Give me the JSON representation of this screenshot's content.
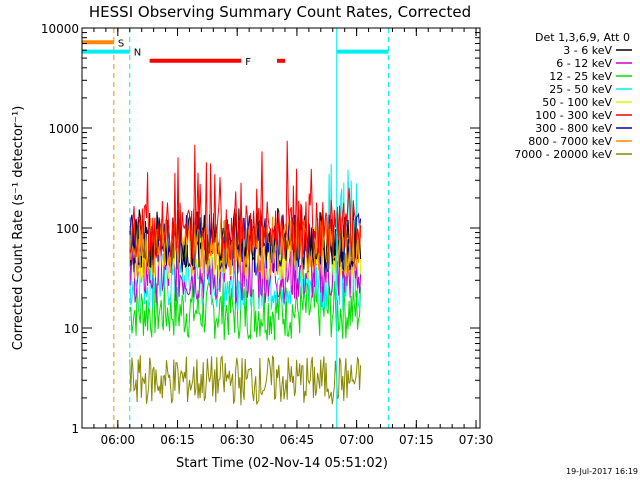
{
  "chart_data": {
    "type": "line",
    "title": "HESSI Observing Summary Count Rates, Corrected",
    "xlabel": "Start Time (02-Nov-14 05:51:02)",
    "ylabel": "Corrected Count Rate (s⁻¹ detector⁻¹)",
    "ylog": true,
    "ylim": [
      1,
      10000
    ],
    "xlim_minutes": [
      0,
      100
    ],
    "x_ticks": [
      {
        "minute": 9,
        "label": "06:00"
      },
      {
        "minute": 24,
        "label": "06:15"
      },
      {
        "minute": 39,
        "label": "06:30"
      },
      {
        "minute": 54,
        "label": "06:45"
      },
      {
        "minute": 69,
        "label": "07:00"
      },
      {
        "minute": 84,
        "label": "07:15"
      },
      {
        "minute": 99,
        "label": "07:30"
      }
    ],
    "y_ticks": [
      {
        "value": 1,
        "label": "1"
      },
      {
        "value": 10,
        "label": "10"
      },
      {
        "value": 100,
        "label": "100"
      },
      {
        "value": 1000,
        "label": "1000"
      },
      {
        "value": 10000,
        "label": "10000"
      }
    ],
    "legend_title": "Det 1,3,6,9, Att 0",
    "legend_position": "right",
    "series": [
      {
        "name": "3 - 6 keV",
        "color": "#000000",
        "level": 80
      },
      {
        "name": "6 - 12 keV",
        "color": "#cc00cc",
        "level": 35
      },
      {
        "name": "12 - 25 keV",
        "color": "#00dd00",
        "level": 15
      },
      {
        "name": "25 - 50 keV",
        "color": "#00eeee",
        "level": 30
      },
      {
        "name": "50 - 100 keV",
        "color": "#eeee00",
        "level": 60
      },
      {
        "name": "100 - 300 keV",
        "color": "#ff0000",
        "level": 95
      },
      {
        "name": "300 - 800 keV",
        "color": "#0000aa",
        "level": 70
      },
      {
        "name": "800 - 7000 keV",
        "color": "#ff8800",
        "level": 65
      },
      {
        "name": "7000 - 20000 keV",
        "color": "#888800",
        "level": 3
      }
    ],
    "data_window_minutes": [
      12,
      70
    ],
    "flag_bars": [
      {
        "label": "S",
        "color": "#ff8800",
        "x": [
          0,
          8
        ],
        "y": 7200
      },
      {
        "label": "N",
        "color": "#00eeee",
        "x": [
          0,
          12
        ],
        "y": 5800
      },
      {
        "label": "N",
        "color": "#00eeee",
        "x": [
          64,
          77
        ],
        "y": 5800
      },
      {
        "label": "F",
        "color": "#ff0000",
        "x": [
          17,
          40
        ],
        "y": 4700
      },
      {
        "label": "F",
        "color": "#ff0000",
        "x": [
          49,
          51
        ],
        "y": 4700
      }
    ],
    "vertical_lines": [
      {
        "minute": 0,
        "color": "#00eeee",
        "style": "solid"
      },
      {
        "minute": 8,
        "color": "#ff8800",
        "style": "dashed"
      },
      {
        "minute": 12,
        "color": "#00eeee",
        "style": "dashed"
      },
      {
        "minute": 64,
        "color": "#00eeee",
        "style": "solid"
      },
      {
        "minute": 77,
        "color": "#00eeee",
        "style": "dashed"
      }
    ],
    "footer_date": "19-Jul-2017 16:19"
  }
}
